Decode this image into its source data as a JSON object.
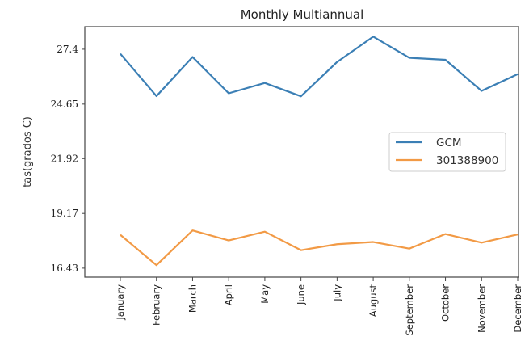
{
  "chart_data": {
    "type": "line",
    "title": "Monthly Multiannual",
    "xlabel": "",
    "ylabel": "tas(grados C)",
    "categories": [
      "January",
      "February",
      "March",
      "April",
      "May",
      "June",
      "July",
      "August",
      "September",
      "October",
      "November",
      "December"
    ],
    "yticks": [
      16.43,
      19.17,
      21.92,
      24.65,
      27.4
    ],
    "ytick_labels": [
      "16.43",
      "19.17",
      "21.92",
      "24.65",
      "27.4"
    ],
    "ylim": [
      15.98,
      28.53
    ],
    "grid": false,
    "legend": "center-right",
    "series": [
      {
        "name": "GCM",
        "color": "#3b7fb5",
        "values": [
          27.17,
          25.05,
          27.01,
          25.19,
          25.71,
          25.04,
          26.76,
          28.03,
          26.97,
          26.87,
          25.31,
          26.15
        ]
      },
      {
        "name": "301388900",
        "color": "#f29a45",
        "values": [
          18.1,
          16.58,
          18.32,
          17.82,
          18.26,
          17.33,
          17.63,
          17.74,
          17.41,
          18.14,
          17.71,
          18.12
        ]
      }
    ]
  }
}
